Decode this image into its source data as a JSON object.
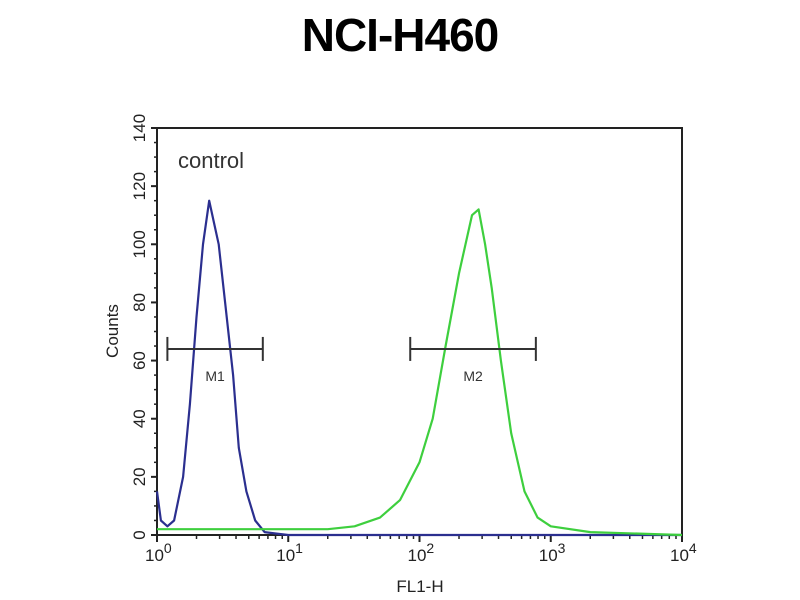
{
  "chart_data": {
    "type": "line",
    "title": "NCI-H460",
    "xlabel": "FL1-H",
    "ylabel": "Counts",
    "x_scale": "log",
    "xlim": [
      1,
      10000
    ],
    "ylim": [
      0,
      140
    ],
    "x_ticks": [
      {
        "base": "10",
        "exp": "0"
      },
      {
        "base": "10",
        "exp": "1"
      },
      {
        "base": "10",
        "exp": "2"
      },
      {
        "base": "10",
        "exp": "3"
      },
      {
        "base": "10",
        "exp": "4"
      }
    ],
    "y_ticks": [
      "0",
      "20",
      "40",
      "60",
      "80",
      "100",
      "120",
      "140"
    ],
    "grid": false,
    "annotations": [
      {
        "text": "control",
        "position": "top-left"
      }
    ],
    "series": [
      {
        "color": "#2b2f8f",
        "x": [
          1,
          1.07,
          1.2,
          1.35,
          1.58,
          1.78,
          2.0,
          2.24,
          2.5,
          2.7,
          2.95,
          3.3,
          3.8,
          4.2,
          4.8,
          5.6,
          6.6,
          8,
          10,
          100,
          1000,
          10000
        ],
        "y": [
          15,
          5,
          3,
          5,
          20,
          45,
          75,
          100,
          115,
          108,
          100,
          80,
          55,
          30,
          15,
          5,
          1,
          0.5,
          0,
          0,
          0,
          0
        ]
      },
      {
        "color": "#3ecf3e",
        "x": [
          1,
          3,
          10,
          20,
          32,
          50,
          71,
          100,
          126,
          158,
          200,
          251,
          282,
          316,
          355,
          417,
          500,
          631,
          794,
          1000,
          2000,
          10000
        ],
        "y": [
          2,
          2,
          2,
          2,
          3,
          6,
          12,
          25,
          40,
          65,
          90,
          110,
          112,
          100,
          85,
          60,
          35,
          15,
          6,
          3,
          1,
          0
        ]
      }
    ],
    "markers": [
      {
        "label": "M1",
        "x_range": [
          1.2,
          6.4
        ],
        "y": 64
      },
      {
        "label": "M2",
        "x_range": [
          85,
          770
        ],
        "y": 64
      }
    ]
  }
}
